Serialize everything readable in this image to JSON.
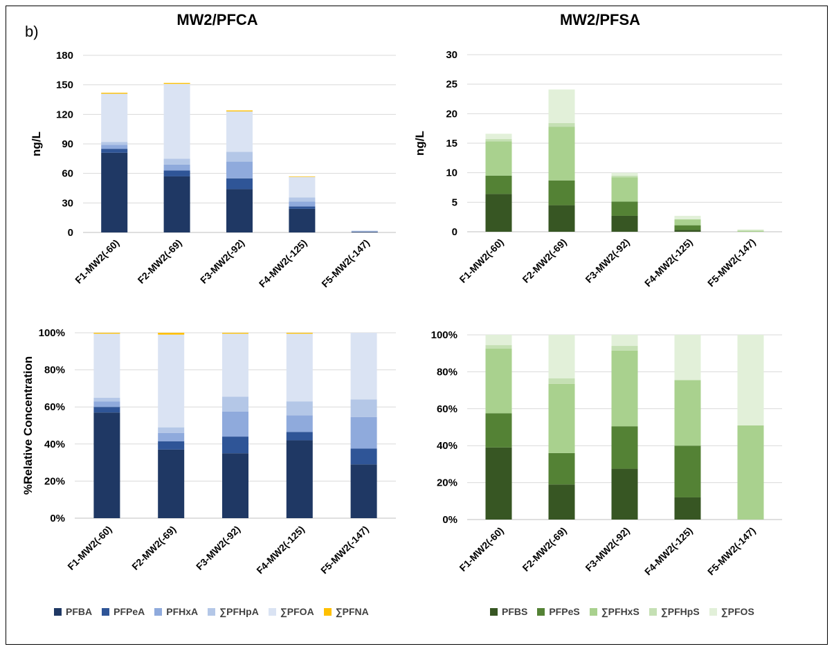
{
  "panel_label": "b)",
  "titles": {
    "pfca": "MW2/PFCA",
    "pfsa": "MW2/PFSA"
  },
  "legends": {
    "pfca": [
      {
        "label": "PFBA",
        "color": "#1F3864"
      },
      {
        "label": "PFPeA",
        "color": "#2F5597"
      },
      {
        "label": "PFHxA",
        "color": "#8FAADC"
      },
      {
        "label": "∑PFHpA",
        "color": "#B4C7E7"
      },
      {
        "label": "∑PFOA",
        "color": "#DAE3F3"
      },
      {
        "label": "∑PFNA",
        "color": "#FFC000"
      }
    ],
    "pfsa": [
      {
        "label": "PFBS",
        "color": "#375623"
      },
      {
        "label": "PFPeS",
        "color": "#548235"
      },
      {
        "label": "∑PFHxS",
        "color": "#A9D18E"
      },
      {
        "label": "∑PFHpS",
        "color": "#C5E0B4"
      },
      {
        "label": "∑PFOS",
        "color": "#E2F0D9"
      }
    ]
  },
  "chart_data": [
    {
      "type": "bar",
      "stacked": true,
      "title": "MW2/PFCA",
      "ylabel": "ng/L",
      "ylim": [
        0,
        180
      ],
      "yticks": [
        "0",
        "30",
        "60",
        "90",
        "120",
        "150",
        "180"
      ],
      "categories": [
        "F1-MW2(-60)",
        "F2-MW2(-69)",
        "F3-MW2(-92)",
        "F4-MW2(-125)",
        "F5-MW2(-147)"
      ],
      "series": [
        {
          "name": "PFBA",
          "color": "#1F3864",
          "values": [
            81,
            57,
            44,
            24,
            0.6
          ]
        },
        {
          "name": "PFPeA",
          "color": "#2F5597",
          "values": [
            4,
            6,
            11,
            2.5,
            0.2
          ]
        },
        {
          "name": "PFHxA",
          "color": "#8FAADC",
          "values": [
            4,
            6,
            17,
            5,
            0.4
          ]
        },
        {
          "name": "∑PFHpA",
          "color": "#B4C7E7",
          "values": [
            3,
            6,
            10,
            4,
            0.2
          ]
        },
        {
          "name": "∑PFOA",
          "color": "#DAE3F3",
          "values": [
            49,
            76,
            41,
            21,
            0.7
          ]
        },
        {
          "name": "∑PFNA",
          "color": "#FFC000",
          "values": [
            1,
            1,
            1,
            0.5,
            0
          ]
        }
      ]
    },
    {
      "type": "bar",
      "stacked": true,
      "title": "MW2/PFSA",
      "ylabel": "ng/L",
      "ylim": [
        0,
        30
      ],
      "yticks": [
        "0",
        "5",
        "10",
        "15",
        "20",
        "25",
        "30"
      ],
      "categories": [
        "F1-MW2(-60)",
        "F2-MW2(-69)",
        "F3-MW2(-92)",
        "F4-MW2(-125)",
        "F5-MW2(-147)"
      ],
      "series": [
        {
          "name": "PFBS",
          "color": "#375623",
          "values": [
            6.4,
            4.5,
            2.7,
            0.3,
            0
          ]
        },
        {
          "name": "PFPeS",
          "color": "#548235",
          "values": [
            3.1,
            4.2,
            2.4,
            0.8,
            0
          ]
        },
        {
          "name": "∑PFHxS",
          "color": "#A9D18E",
          "values": [
            5.8,
            9.1,
            4.1,
            1.0,
            0.2
          ]
        },
        {
          "name": "∑PFHpS",
          "color": "#C5E0B4",
          "values": [
            0.4,
            0.6,
            0.3,
            0,
            0
          ]
        },
        {
          "name": "∑PFOS",
          "color": "#E2F0D9",
          "values": [
            0.9,
            5.7,
            0.5,
            0.6,
            0.2
          ]
        }
      ]
    },
    {
      "type": "bar",
      "stacked": true,
      "ylabel": "%Relative Concentration",
      "ylim": [
        0,
        100
      ],
      "yticks": [
        "0%",
        "20%",
        "40%",
        "60%",
        "80%",
        "100%"
      ],
      "categories": [
        "F1-MW2(-60)",
        "F2-MW2(-69)",
        "F3-MW2(-92)",
        "F4-MW2(-125)",
        "F5-MW2(-147)"
      ],
      "series": [
        {
          "name": "PFBA",
          "color": "#1F3864",
          "values": [
            57,
            37,
            35,
            42,
            29
          ]
        },
        {
          "name": "PFPeA",
          "color": "#2F5597",
          "values": [
            3,
            4.5,
            9,
            4.5,
            8.5
          ]
        },
        {
          "name": "PFHxA",
          "color": "#8FAADC",
          "values": [
            3,
            4.5,
            13.5,
            9,
            17
          ]
        },
        {
          "name": "∑PFHpA",
          "color": "#B4C7E7",
          "values": [
            2,
            3,
            8,
            7.5,
            9.5
          ]
        },
        {
          "name": "∑PFOA",
          "color": "#DAE3F3",
          "values": [
            34.5,
            50,
            34,
            36.5,
            36
          ]
        },
        {
          "name": "∑PFNA",
          "color": "#FFC000",
          "values": [
            0.5,
            1,
            0.5,
            0.5,
            0
          ]
        }
      ]
    },
    {
      "type": "bar",
      "stacked": true,
      "ylim": [
        0,
        100
      ],
      "yticks": [
        "0%",
        "20%",
        "40%",
        "60%",
        "80%",
        "100%"
      ],
      "categories": [
        "F1-MW2(-60)",
        "F2-MW2(-69)",
        "F3-MW2(-92)",
        "F4-MW2(-125)",
        "F5-MW2(-147)"
      ],
      "series": [
        {
          "name": "PFBS",
          "color": "#375623",
          "values": [
            39,
            19,
            27.5,
            12,
            0
          ]
        },
        {
          "name": "PFPeS",
          "color": "#548235",
          "values": [
            18.5,
            17,
            23,
            28,
            0
          ]
        },
        {
          "name": "∑PFHxS",
          "color": "#A9D18E",
          "values": [
            35,
            37.5,
            41,
            35.5,
            51
          ]
        },
        {
          "name": "∑PFHpS",
          "color": "#C5E0B4",
          "values": [
            2,
            3,
            2.5,
            0,
            0
          ]
        },
        {
          "name": "∑PFOS",
          "color": "#E2F0D9",
          "values": [
            5.5,
            23.5,
            6,
            24.5,
            49
          ]
        }
      ]
    }
  ]
}
